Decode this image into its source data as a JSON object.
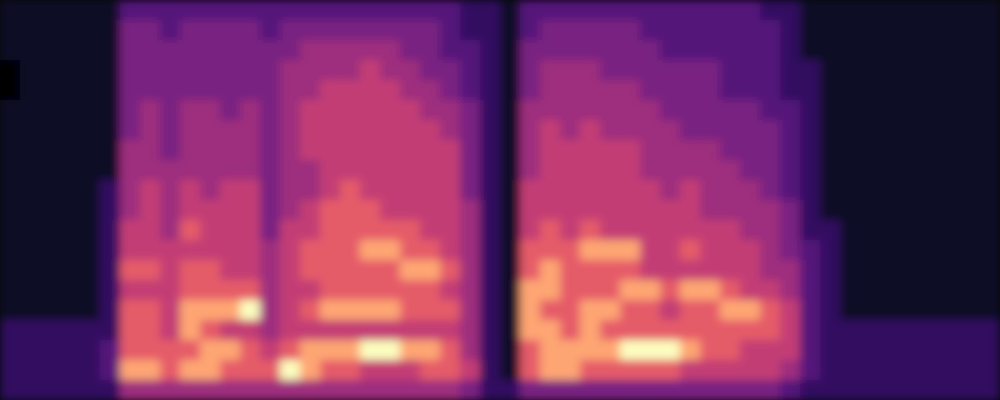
{
  "chart_data": {
    "type": "heatmap",
    "color": "magma",
    "tick_labels": false,
    "color_range": [
      0,
      9
    ],
    "cells": [
      [
        1,
        1,
        1,
        1,
        1,
        1,
        3,
        3,
        3,
        3,
        3,
        3,
        3,
        3,
        3,
        3,
        3,
        3,
        3,
        3,
        3,
        3,
        3,
        2,
        2,
        1,
        3,
        3,
        3,
        3,
        3,
        3,
        3,
        3,
        3,
        3,
        3,
        3,
        2,
        2,
        1,
        1,
        1,
        1,
        1,
        1,
        1,
        1,
        1,
        1
      ],
      [
        1,
        1,
        1,
        1,
        1,
        1,
        4,
        4,
        3,
        4,
        4,
        4,
        4,
        3,
        4,
        4,
        4,
        4,
        4,
        4,
        4,
        4,
        3,
        2,
        2,
        1,
        3,
        4,
        4,
        4,
        4,
        4,
        3,
        3,
        3,
        3,
        3,
        3,
        3,
        2,
        1,
        1,
        1,
        1,
        1,
        1,
        1,
        1,
        1,
        1
      ],
      [
        1,
        1,
        1,
        1,
        1,
        1,
        4,
        4,
        4,
        4,
        4,
        4,
        4,
        4,
        4,
        5,
        5,
        5,
        5,
        5,
        4,
        4,
        3,
        3,
        2,
        1,
        4,
        4,
        4,
        4,
        4,
        4,
        4,
        3,
        3,
        3,
        3,
        3,
        3,
        2,
        1,
        1,
        1,
        1,
        1,
        1,
        1,
        1,
        1,
        1
      ],
      [
        0,
        1,
        1,
        1,
        1,
        1,
        4,
        4,
        4,
        4,
        4,
        4,
        4,
        4,
        5,
        5,
        5,
        5,
        6,
        5,
        5,
        4,
        4,
        3,
        2,
        1,
        4,
        5,
        5,
        5,
        4,
        4,
        4,
        4,
        4,
        4,
        3,
        3,
        3,
        2,
        2,
        1,
        1,
        1,
        1,
        1,
        1,
        1,
        1,
        1
      ],
      [
        0,
        1,
        1,
        1,
        1,
        1,
        4,
        4,
        4,
        4,
        4,
        4,
        4,
        4,
        5,
        5,
        6,
        6,
        6,
        6,
        5,
        5,
        4,
        3,
        2,
        1,
        4,
        5,
        5,
        5,
        5,
        5,
        4,
        4,
        4,
        4,
        3,
        3,
        3,
        2,
        2,
        1,
        1,
        1,
        1,
        1,
        1,
        1,
        1,
        1
      ],
      [
        1,
        1,
        1,
        1,
        1,
        1,
        4,
        5,
        4,
        5,
        5,
        4,
        5,
        4,
        5,
        6,
        6,
        6,
        6,
        6,
        6,
        5,
        5,
        4,
        2,
        1,
        5,
        5,
        5,
        5,
        5,
        5,
        5,
        4,
        4,
        4,
        4,
        4,
        3,
        3,
        2,
        1,
        1,
        1,
        1,
        1,
        1,
        1,
        1,
        1
      ],
      [
        1,
        1,
        1,
        1,
        1,
        1,
        4,
        5,
        4,
        5,
        5,
        5,
        5,
        4,
        5,
        6,
        6,
        6,
        6,
        6,
        6,
        6,
        5,
        4,
        2,
        1,
        5,
        6,
        5,
        6,
        5,
        5,
        5,
        5,
        4,
        4,
        4,
        4,
        4,
        3,
        2,
        1,
        1,
        1,
        1,
        1,
        1,
        1,
        1,
        1
      ],
      [
        1,
        1,
        1,
        1,
        1,
        1,
        5,
        5,
        4,
        5,
        5,
        5,
        5,
        4,
        5,
        6,
        6,
        6,
        6,
        6,
        6,
        6,
        6,
        4,
        2,
        1,
        5,
        6,
        6,
        6,
        6,
        6,
        5,
        5,
        5,
        5,
        4,
        4,
        4,
        3,
        2,
        1,
        1,
        1,
        1,
        1,
        1,
        1,
        1,
        1
      ],
      [
        1,
        1,
        1,
        1,
        1,
        1,
        5,
        5,
        5,
        5,
        5,
        5,
        5,
        4,
        5,
        5,
        6,
        6,
        6,
        6,
        6,
        6,
        6,
        4,
        2,
        1,
        5,
        6,
        6,
        6,
        6,
        6,
        5,
        5,
        5,
        5,
        5,
        4,
        4,
        3,
        2,
        1,
        1,
        1,
        1,
        1,
        1,
        1,
        1,
        1
      ],
      [
        1,
        1,
        1,
        1,
        1,
        2,
        5,
        6,
        5,
        6,
        5,
        6,
        6,
        4,
        5,
        5,
        6,
        7,
        6,
        6,
        6,
        6,
        6,
        4,
        2,
        1,
        6,
        6,
        6,
        6,
        6,
        6,
        6,
        5,
        6,
        5,
        5,
        5,
        4,
        3,
        2,
        1,
        1,
        1,
        1,
        1,
        1,
        1,
        1,
        1
      ],
      [
        1,
        1,
        1,
        1,
        1,
        2,
        5,
        6,
        5,
        6,
        6,
        6,
        6,
        4,
        5,
        6,
        7,
        7,
        7,
        6,
        6,
        6,
        6,
        5,
        2,
        1,
        6,
        6,
        6,
        6,
        6,
        6,
        6,
        6,
        6,
        5,
        5,
        5,
        5,
        4,
        2,
        1,
        1,
        1,
        1,
        1,
        1,
        1,
        1,
        1
      ],
      [
        1,
        1,
        1,
        1,
        1,
        2,
        6,
        6,
        5,
        7,
        6,
        6,
        6,
        4,
        6,
        6,
        7,
        7,
        7,
        7,
        7,
        6,
        6,
        5,
        2,
        1,
        6,
        7,
        6,
        7,
        6,
        6,
        6,
        6,
        6,
        6,
        6,
        5,
        5,
        4,
        2,
        2,
        1,
        1,
        1,
        1,
        1,
        1,
        1,
        1
      ],
      [
        1,
        1,
        1,
        1,
        1,
        2,
        6,
        6,
        6,
        6,
        6,
        6,
        6,
        5,
        6,
        7,
        7,
        7,
        8,
        8,
        7,
        7,
        6,
        5,
        2,
        1,
        7,
        7,
        7,
        8,
        8,
        8,
        6,
        6,
        7,
        6,
        6,
        6,
        5,
        4,
        3,
        2,
        1,
        1,
        1,
        1,
        1,
        1,
        1,
        1
      ],
      [
        1,
        1,
        1,
        1,
        1,
        2,
        7,
        7,
        6,
        7,
        7,
        6,
        6,
        5,
        6,
        7,
        7,
        7,
        7,
        7,
        8,
        8,
        7,
        5,
        2,
        1,
        7,
        8,
        7,
        7,
        7,
        7,
        6,
        6,
        6,
        6,
        6,
        6,
        5,
        5,
        3,
        2,
        1,
        1,
        1,
        1,
        1,
        1,
        1,
        1
      ],
      [
        1,
        1,
        1,
        1,
        1,
        2,
        6,
        6,
        6,
        7,
        7,
        7,
        7,
        5,
        6,
        6,
        7,
        7,
        7,
        7,
        7,
        7,
        6,
        5,
        2,
        1,
        8,
        8,
        7,
        7,
        7,
        8,
        8,
        7,
        8,
        8,
        7,
        6,
        6,
        5,
        3,
        2,
        1,
        1,
        1,
        1,
        1,
        1,
        1,
        1
      ],
      [
        1,
        1,
        1,
        1,
        1,
        2,
        7,
        7,
        6,
        8,
        8,
        8,
        9,
        5,
        6,
        7,
        8,
        8,
        8,
        8,
        7,
        7,
        7,
        5,
        2,
        1,
        8,
        7,
        7,
        8,
        8,
        7,
        7,
        6,
        7,
        7,
        8,
        8,
        7,
        6,
        3,
        2,
        1,
        1,
        1,
        1,
        1,
        1,
        1,
        1
      ],
      [
        2,
        2,
        2,
        2,
        2,
        2,
        7,
        7,
        6,
        8,
        7,
        6,
        6,
        5,
        6,
        6,
        6,
        6,
        6,
        6,
        6,
        6,
        6,
        5,
        2,
        1,
        8,
        8,
        7,
        8,
        7,
        7,
        7,
        7,
        7,
        7,
        7,
        7,
        7,
        6,
        3,
        2,
        2,
        2,
        2,
        2,
        2,
        2,
        2,
        2
      ],
      [
        2,
        2,
        2,
        2,
        2,
        3,
        7,
        7,
        7,
        7,
        8,
        8,
        7,
        6,
        7,
        8,
        8,
        8,
        9,
        9,
        8,
        8,
        7,
        5,
        2,
        1,
        7,
        8,
        8,
        8,
        8,
        9,
        9,
        9,
        8,
        7,
        7,
        6,
        6,
        6,
        3,
        2,
        2,
        2,
        2,
        2,
        2,
        2,
        2,
        2
      ],
      [
        2,
        2,
        2,
        2,
        2,
        3,
        8,
        8,
        7,
        8,
        8,
        7,
        7,
        7,
        9,
        8,
        7,
        7,
        6,
        6,
        6,
        7,
        7,
        6,
        2,
        1,
        7,
        8,
        8,
        7,
        7,
        7,
        7,
        7,
        6,
        6,
        6,
        6,
        6,
        5,
        3,
        2,
        2,
        2,
        2,
        2,
        2,
        2,
        2,
        2
      ],
      [
        2,
        2,
        2,
        2,
        2,
        2,
        5,
        5,
        5,
        5,
        5,
        5,
        5,
        5,
        5,
        5,
        5,
        5,
        5,
        5,
        5,
        5,
        5,
        4,
        2,
        2,
        4,
        4,
        4,
        4,
        4,
        4,
        4,
        4,
        4,
        4,
        4,
        4,
        4,
        3,
        2,
        2,
        2,
        2,
        2,
        2,
        2,
        2,
        2,
        2
      ]
    ]
  }
}
